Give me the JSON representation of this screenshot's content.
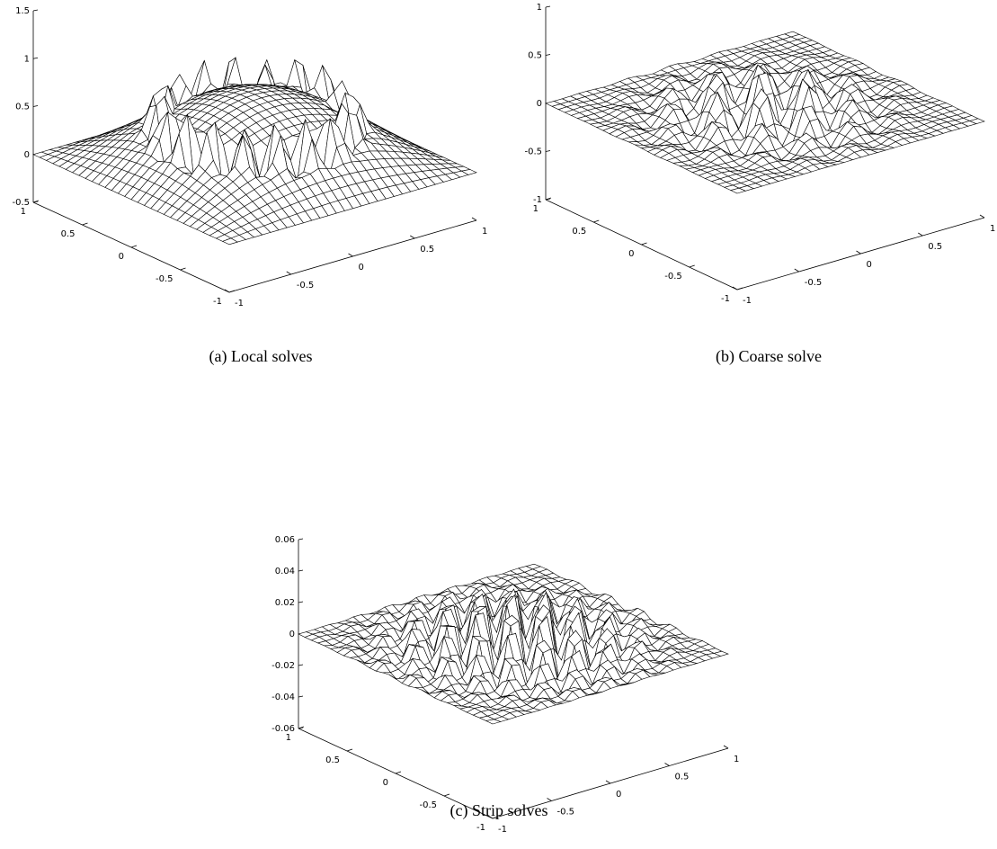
{
  "chart_data": [
    {
      "type": "surface",
      "caption": "(a) Local solves",
      "xlim": [
        -1,
        1
      ],
      "ylim": [
        -1,
        1
      ],
      "zlim": [
        -0.5,
        1.5
      ],
      "xticks": [
        -1,
        -0.5,
        0,
        0.5,
        1
      ],
      "yticks": [
        -1,
        -0.5,
        0,
        0.5,
        1
      ],
      "zticks": [
        -0.5,
        0,
        0.5,
        1,
        1.5
      ]
    },
    {
      "type": "surface",
      "caption": "(b) Coarse solve",
      "xlim": [
        -1,
        1
      ],
      "ylim": [
        -1,
        1
      ],
      "zlim": [
        -1,
        1
      ],
      "xticks": [
        -1,
        -0.5,
        0,
        0.5,
        1
      ],
      "yticks": [
        -1,
        -0.5,
        0,
        0.5,
        1
      ],
      "zticks": [
        -1,
        -0.5,
        0,
        0.5,
        1
      ]
    },
    {
      "type": "surface",
      "caption": "(c) Strip solves",
      "xlim": [
        -1,
        1
      ],
      "ylim": [
        -1,
        1
      ],
      "zlim": [
        -0.06,
        0.06
      ],
      "xticks": [
        -1,
        -0.5,
        0,
        0.5,
        1
      ],
      "yticks": [
        -1,
        -0.5,
        0,
        0.5,
        1
      ],
      "zticks": [
        -0.06,
        -0.04,
        -0.02,
        0,
        0.02,
        0.04,
        0.06
      ]
    }
  ]
}
